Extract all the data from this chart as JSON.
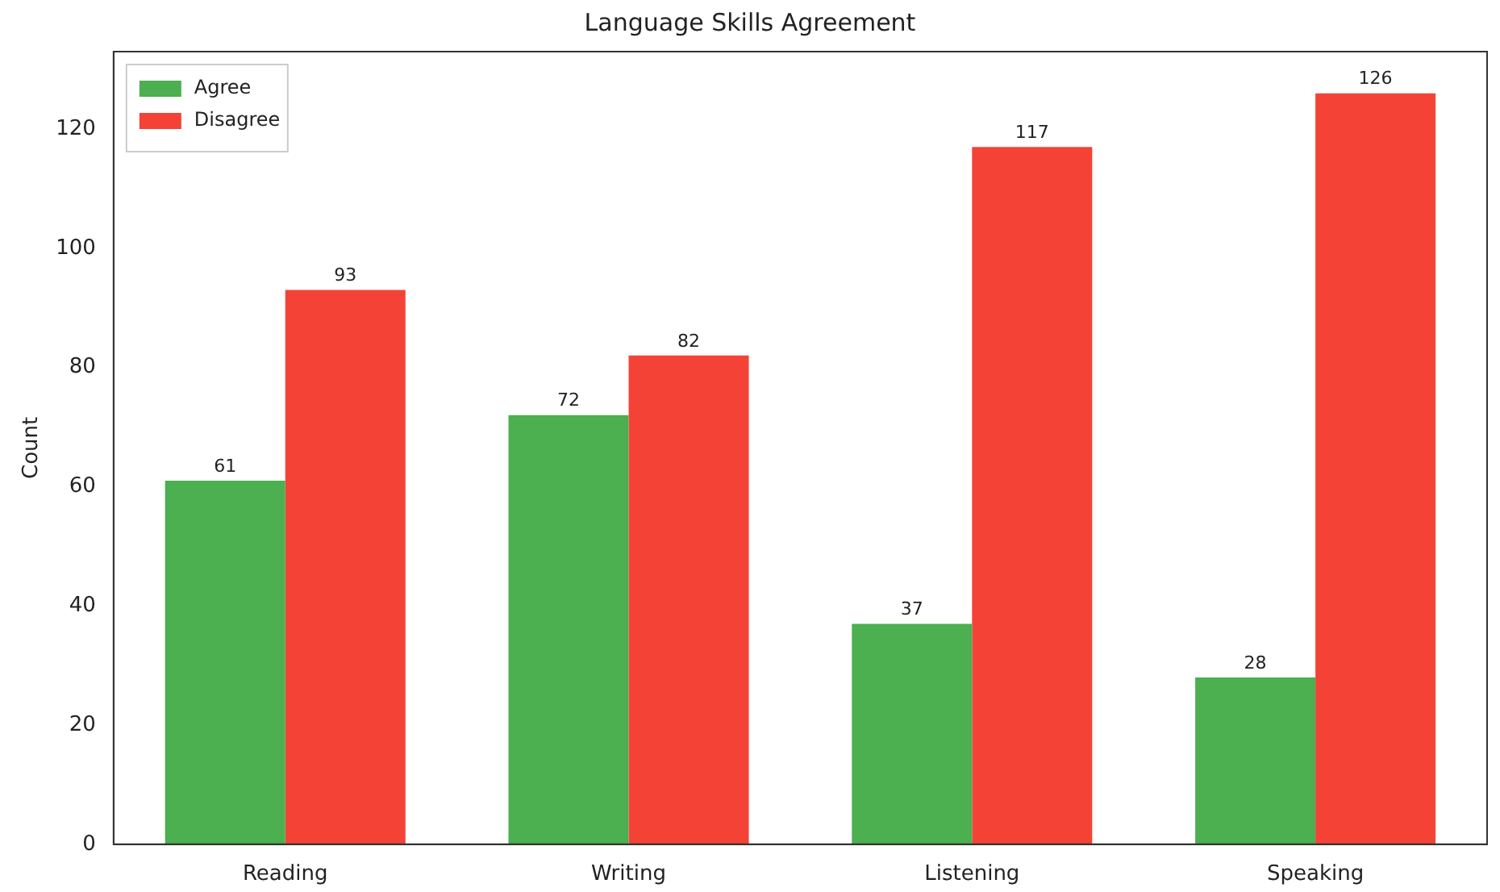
{
  "chart_data": {
    "type": "bar",
    "title": "Language Skills Agreement",
    "ylabel": "Count",
    "categories": [
      "Reading",
      "Writing",
      "Listening",
      "Speaking"
    ],
    "series": [
      {
        "name": "Agree",
        "color": "#4caf50",
        "values": [
          61,
          72,
          37,
          28
        ]
      },
      {
        "name": "Disagree",
        "color": "#f44336",
        "values": [
          93,
          82,
          117,
          126
        ]
      }
    ],
    "ylim": [
      0,
      133
    ],
    "yticks": [
      0,
      20,
      40,
      60,
      80,
      100,
      120
    ],
    "grid": false,
    "legend": "top left",
    "data_labels": true
  }
}
